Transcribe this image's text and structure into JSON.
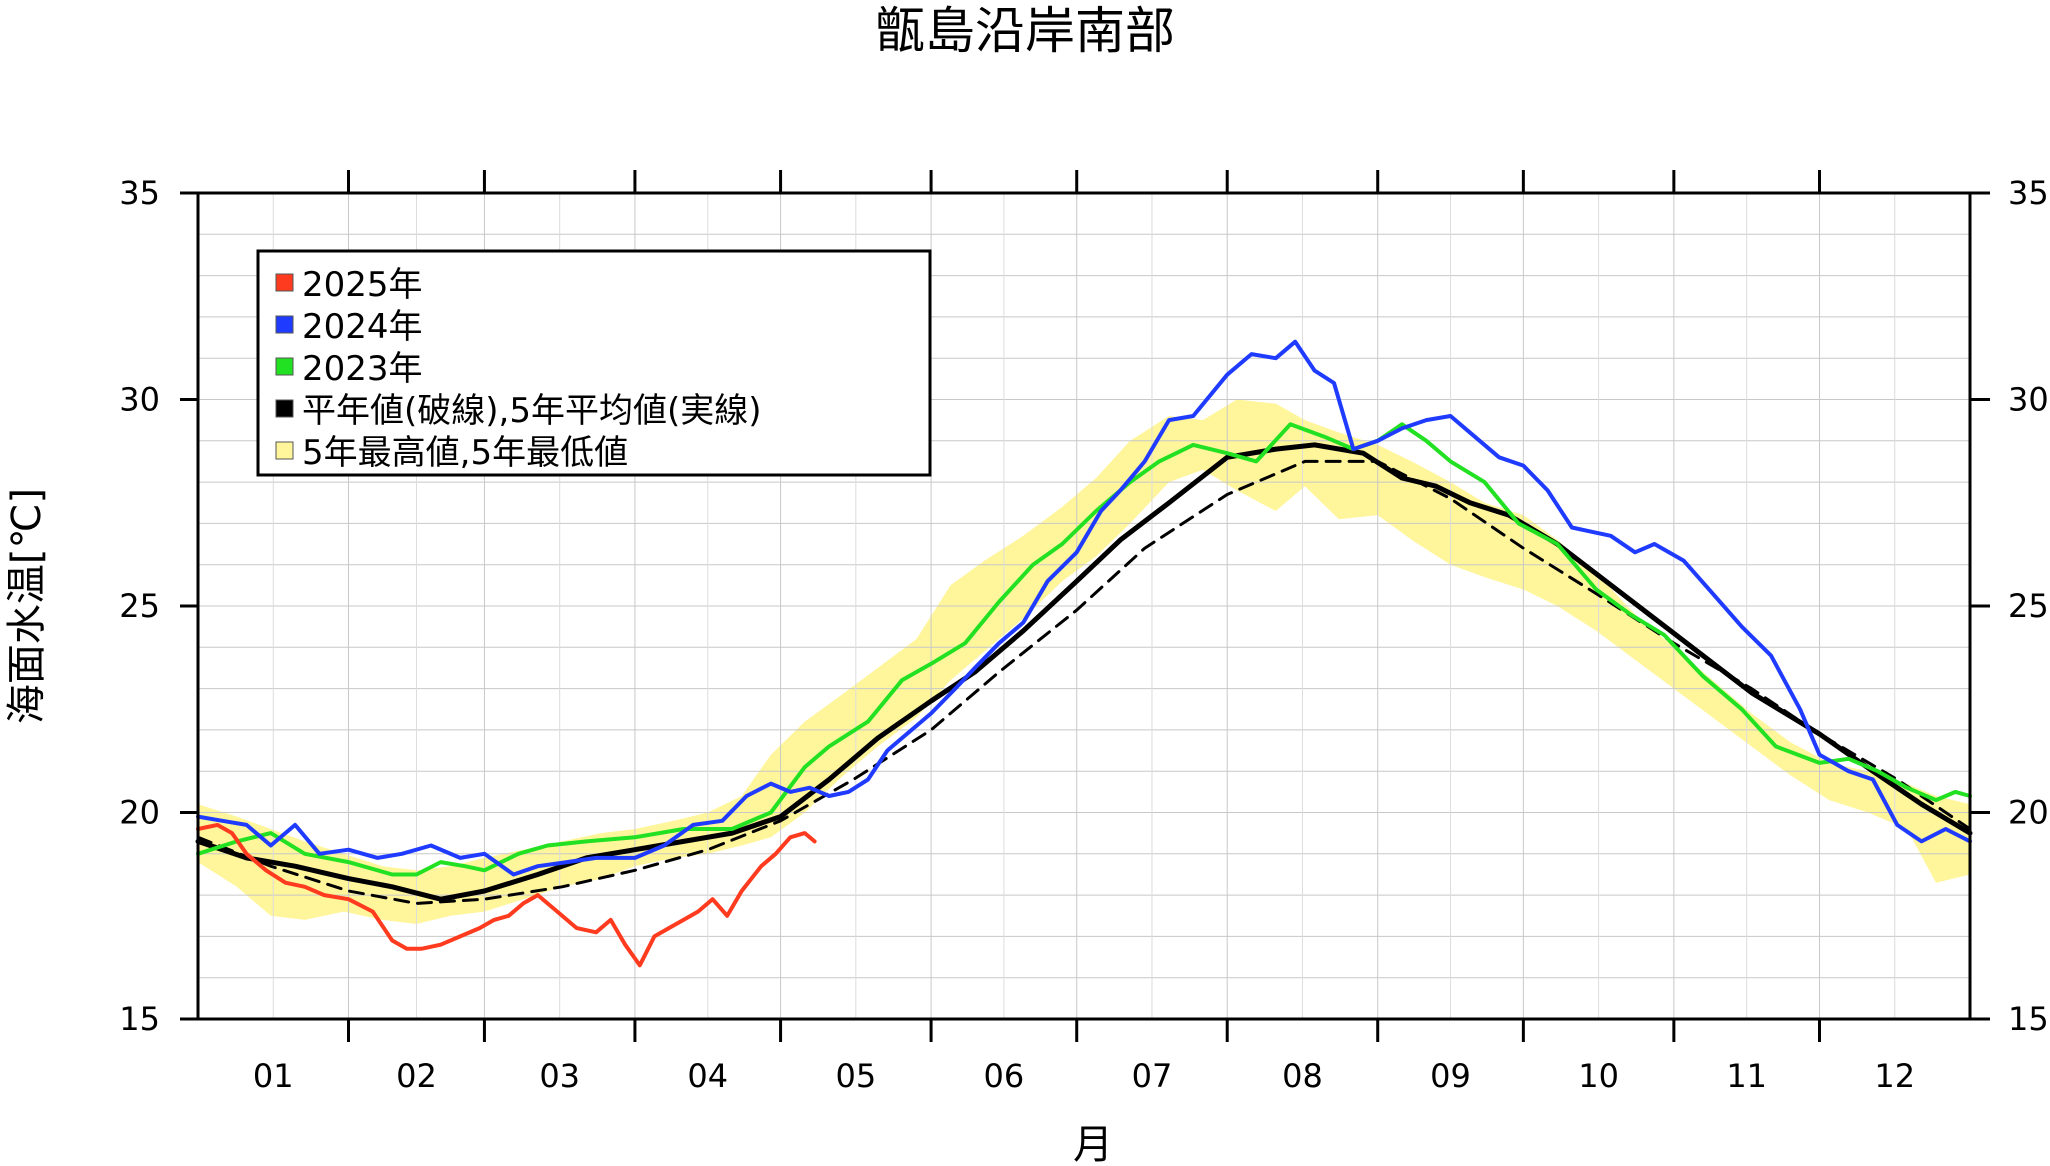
{
  "chart_data": {
    "type": "line",
    "title": "甑島沿岸南部",
    "xlabel": "月",
    "ylabel": "海面水温[℃]",
    "ylim": [
      15,
      35
    ],
    "yticks": [
      15,
      20,
      25,
      30,
      35
    ],
    "xlim": [
      0,
      365
    ],
    "months": [
      "01",
      "02",
      "03",
      "04",
      "05",
      "06",
      "07",
      "08",
      "09",
      "10",
      "11",
      "12"
    ],
    "month_starts": [
      0,
      31,
      59,
      90,
      120,
      151,
      181,
      212,
      243,
      273,
      304,
      334
    ],
    "grid": true,
    "legend_position": "top-left",
    "colors": {
      "s2025": "#ff3b1f",
      "s2024": "#1f3bff",
      "s2023": "#22e022",
      "avg5": "#000000",
      "normal": "#000000",
      "band": "#fff59b"
    },
    "legend": [
      {
        "label": "2025年",
        "swatch": "#ff3b1f"
      },
      {
        "label": "2024年",
        "swatch": "#1f3bff"
      },
      {
        "label": "2023年",
        "swatch": "#22e022"
      },
      {
        "label": "平年値(破線),5年平均値(実線)",
        "swatch": "#000000"
      },
      {
        "label": "5年最高値,5年最低値",
        "swatch": "#fff59b"
      }
    ],
    "band": {
      "x": [
        0,
        8,
        15,
        22,
        30,
        38,
        45,
        52,
        59,
        67,
        75,
        83,
        90,
        98,
        105,
        112,
        118,
        125,
        132,
        140,
        148,
        155,
        162,
        170,
        178,
        185,
        192,
        200,
        207,
        214,
        222,
        228,
        235,
        243,
        250,
        258,
        265,
        273,
        280,
        288,
        296,
        304,
        312,
        320,
        328,
        336,
        344,
        352,
        358,
        365
      ],
      "high": [
        20.2,
        19.9,
        19.6,
        19.3,
        19.0,
        18.7,
        18.6,
        18.7,
        18.9,
        19.1,
        19.3,
        19.5,
        19.6,
        19.8,
        20.0,
        20.4,
        21.4,
        22.2,
        22.8,
        23.5,
        24.2,
        25.5,
        26.1,
        26.7,
        27.4,
        28.1,
        29.0,
        29.6,
        29.5,
        30.0,
        29.9,
        29.5,
        29.2,
        28.9,
        28.5,
        28.0,
        27.5,
        27.2,
        26.6,
        25.8,
        24.8,
        24.0,
        23.2,
        22.4,
        21.7,
        21.2,
        21.0,
        20.7,
        20.4,
        20.2
      ],
      "low": [
        18.8,
        18.2,
        17.5,
        17.4,
        17.6,
        17.4,
        17.3,
        17.5,
        17.6,
        17.9,
        18.2,
        18.4,
        18.7,
        18.9,
        19.0,
        19.2,
        19.4,
        20.0,
        20.8,
        21.6,
        22.3,
        23.2,
        23.9,
        24.7,
        25.6,
        26.2,
        27.0,
        28.0,
        28.3,
        27.8,
        27.3,
        27.9,
        27.1,
        27.2,
        26.6,
        26.0,
        25.7,
        25.4,
        25.0,
        24.4,
        23.7,
        23.0,
        22.3,
        21.6,
        20.9,
        20.3,
        20.0,
        19.6,
        18.3,
        18.5
      ]
    },
    "series": [
      {
        "key": "normal",
        "style": "dashed",
        "width": 3,
        "x": [
          0,
          15,
          31,
          45,
          59,
          75,
          90,
          105,
          120,
          135,
          151,
          165,
          181,
          195,
          212,
          228,
          243,
          258,
          273,
          288,
          304,
          320,
          334,
          350,
          365
        ],
        "y": [
          19.4,
          18.7,
          18.1,
          17.8,
          17.9,
          18.2,
          18.6,
          19.1,
          19.8,
          20.8,
          22.0,
          23.4,
          24.9,
          26.4,
          27.7,
          28.5,
          28.5,
          27.6,
          26.4,
          25.3,
          24.1,
          23.0,
          21.9,
          20.8,
          19.6
        ]
      },
      {
        "key": "avg5",
        "style": "solid",
        "width": 5,
        "x": [
          0,
          10,
          20,
          31,
          40,
          50,
          59,
          70,
          80,
          90,
          100,
          110,
          120,
          130,
          140,
          151,
          160,
          170,
          181,
          190,
          200,
          212,
          222,
          230,
          240,
          248,
          255,
          262,
          270,
          280,
          290,
          300,
          310,
          320,
          334,
          345,
          355,
          365
        ],
        "y": [
          19.3,
          18.9,
          18.7,
          18.4,
          18.2,
          17.9,
          18.1,
          18.5,
          18.9,
          19.1,
          19.3,
          19.5,
          19.9,
          20.8,
          21.8,
          22.7,
          23.4,
          24.4,
          25.6,
          26.6,
          27.5,
          28.6,
          28.8,
          28.9,
          28.7,
          28.1,
          27.9,
          27.5,
          27.2,
          26.5,
          25.6,
          24.7,
          23.8,
          22.9,
          21.9,
          21.0,
          20.2,
          19.5
        ]
      },
      {
        "key": "s2023",
        "style": "solid",
        "width": 4,
        "x": [
          0,
          8,
          15,
          22,
          31,
          40,
          45,
          50,
          55,
          59,
          66,
          72,
          80,
          90,
          100,
          110,
          118,
          125,
          130,
          138,
          145,
          151,
          158,
          165,
          172,
          178,
          185,
          192,
          198,
          205,
          212,
          218,
          225,
          232,
          238,
          243,
          248,
          253,
          258,
          265,
          272,
          280,
          288,
          295,
          302,
          310,
          318,
          325,
          334,
          340,
          346,
          352,
          358,
          362,
          365
        ],
        "y": [
          19.0,
          19.3,
          19.5,
          19.0,
          18.8,
          18.5,
          18.5,
          18.8,
          18.7,
          18.6,
          19.0,
          19.2,
          19.3,
          19.4,
          19.6,
          19.6,
          20.0,
          21.1,
          21.6,
          22.2,
          23.2,
          23.6,
          24.1,
          25.1,
          26.0,
          26.5,
          27.3,
          28.0,
          28.5,
          28.9,
          28.7,
          28.5,
          29.4,
          29.1,
          28.8,
          29.0,
          29.4,
          29.0,
          28.5,
          28.0,
          27.0,
          26.5,
          25.4,
          24.8,
          24.3,
          23.3,
          22.5,
          21.6,
          21.2,
          21.3,
          21.0,
          20.6,
          20.3,
          20.5,
          20.4
        ]
      },
      {
        "key": "s2024",
        "style": "solid",
        "width": 4,
        "x": [
          0,
          5,
          10,
          15,
          20,
          25,
          31,
          37,
          42,
          48,
          54,
          59,
          65,
          70,
          76,
          82,
          90,
          96,
          102,
          108,
          113,
          118,
          122,
          126,
          130,
          134,
          138,
          142,
          146,
          151,
          156,
          160,
          165,
          170,
          175,
          181,
          186,
          190,
          195,
          200,
          205,
          212,
          217,
          222,
          226,
          230,
          234,
          238,
          243,
          248,
          253,
          258,
          263,
          268,
          273,
          278,
          283,
          287,
          291,
          296,
          300,
          306,
          312,
          318,
          324,
          330,
          334,
          340,
          345,
          350,
          355,
          360,
          365
        ],
        "y": [
          19.9,
          19.8,
          19.7,
          19.2,
          19.7,
          19.0,
          19.1,
          18.9,
          19.0,
          19.2,
          18.9,
          19.0,
          18.5,
          18.7,
          18.8,
          18.9,
          18.9,
          19.2,
          19.7,
          19.8,
          20.4,
          20.7,
          20.5,
          20.6,
          20.4,
          20.5,
          20.8,
          21.5,
          21.9,
          22.4,
          23.0,
          23.5,
          24.1,
          24.6,
          25.6,
          26.3,
          27.3,
          27.8,
          28.5,
          29.5,
          29.6,
          30.6,
          31.1,
          31.0,
          31.4,
          30.7,
          30.4,
          28.8,
          29.0,
          29.3,
          29.5,
          29.6,
          29.1,
          28.6,
          28.4,
          27.8,
          26.9,
          26.8,
          26.7,
          26.3,
          26.5,
          26.1,
          25.3,
          24.5,
          23.8,
          22.5,
          21.4,
          21.0,
          20.8,
          19.7,
          19.3,
          19.6,
          19.3
        ]
      },
      {
        "key": "s2025",
        "style": "solid",
        "width": 4,
        "x": [
          0,
          4,
          7,
          10,
          14,
          18,
          22,
          26,
          31,
          36,
          40,
          43,
          46,
          50,
          54,
          58,
          61,
          64,
          67,
          70,
          74,
          78,
          82,
          85,
          88,
          91,
          94,
          97,
          100,
          103,
          106,
          109,
          112,
          116,
          119,
          122,
          125,
          127
        ],
        "y": [
          19.6,
          19.7,
          19.5,
          19.0,
          18.6,
          18.3,
          18.2,
          18.0,
          17.9,
          17.6,
          16.9,
          16.7,
          16.7,
          16.8,
          17.0,
          17.2,
          17.4,
          17.5,
          17.8,
          18.0,
          17.6,
          17.2,
          17.1,
          17.4,
          16.8,
          16.3,
          17.0,
          17.2,
          17.4,
          17.6,
          17.9,
          17.5,
          18.1,
          18.7,
          19.0,
          19.4,
          19.5,
          19.3
        ]
      }
    ]
  }
}
